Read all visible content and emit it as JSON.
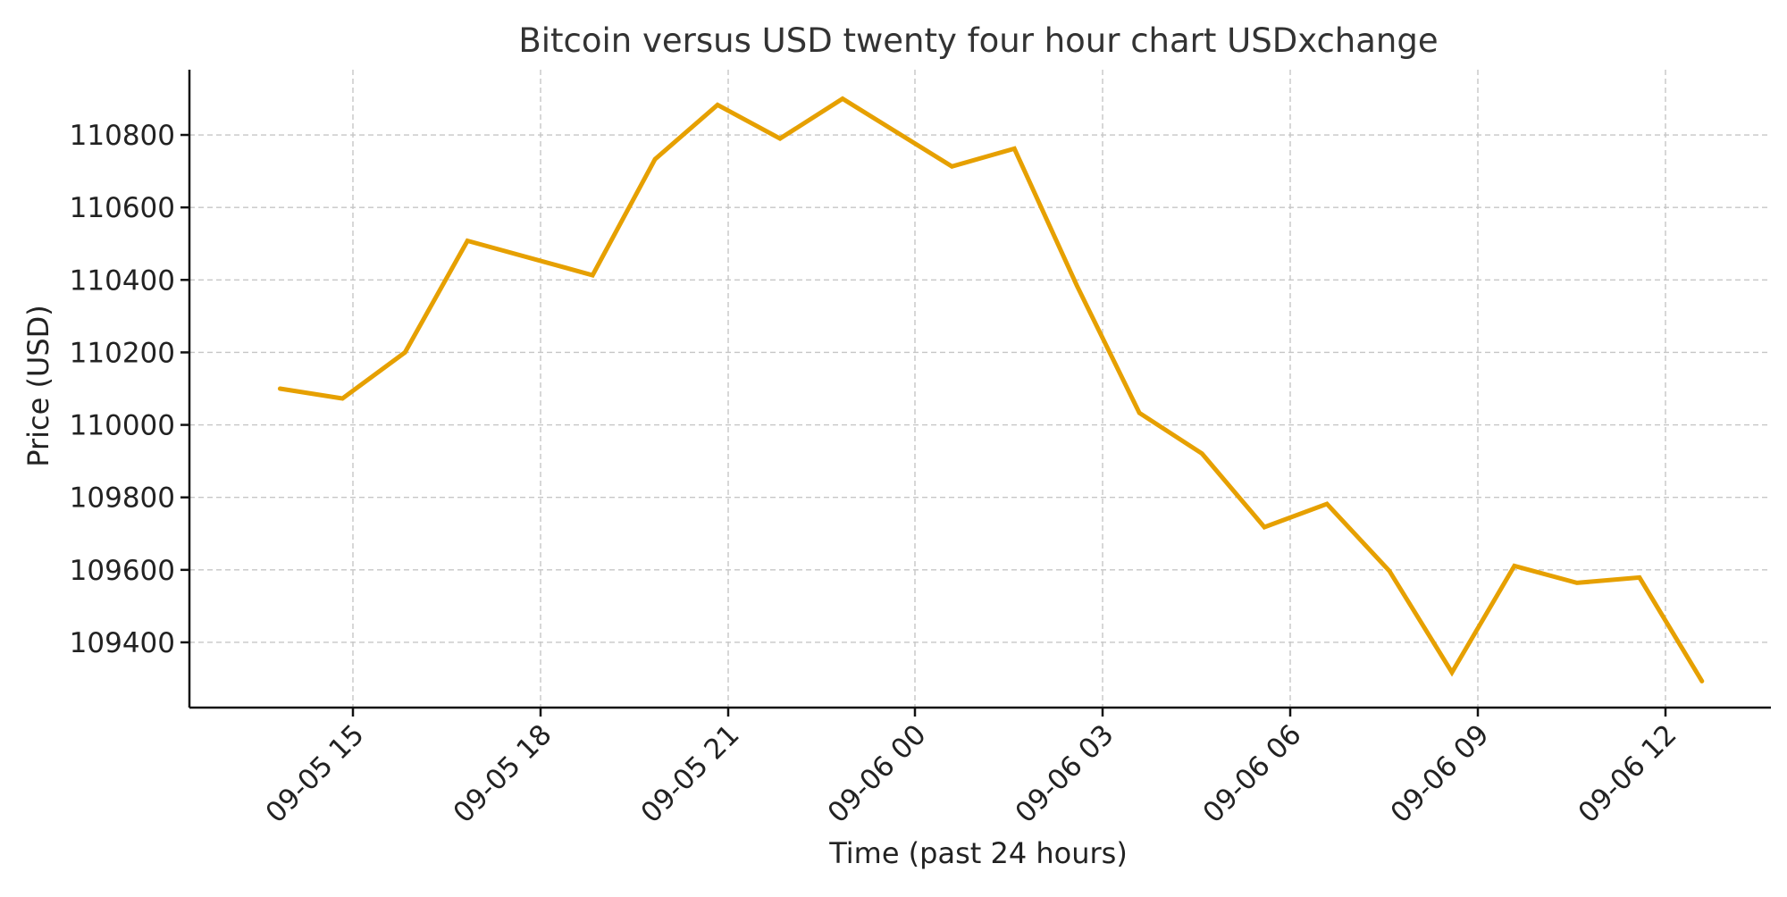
{
  "chart_data": {
    "type": "line",
    "title": "Bitcoin versus USD twenty four hour chart USDxchange",
    "xlabel": "Time (past 24 hours)",
    "ylabel": "Price (USD)",
    "x_ticks": [
      "09-05 15",
      "09-05 18",
      "09-05 21",
      "09-06 00",
      "09-06 03",
      "09-06 06",
      "09-06 09",
      "09-06 12"
    ],
    "y_ticks": [
      109400,
      109600,
      109800,
      110000,
      110200,
      110400,
      110600,
      110800
    ],
    "ylim": [
      109220,
      110980
    ],
    "xlim": [
      "09-05 12:50",
      "09-06 13:15"
    ],
    "grid": true,
    "legend": "none",
    "series": [
      {
        "color": "#e6a000",
        "points": [
          {
            "x": "09-05 13:50",
            "y": 110100
          },
          {
            "x": "09-05 14:50",
            "y": 110073
          },
          {
            "x": "09-05 15:50",
            "y": 110200
          },
          {
            "x": "09-05 16:50",
            "y": 110508
          },
          {
            "x": "09-05 18:50",
            "y": 110413
          },
          {
            "x": "09-05 19:50",
            "y": 110733
          },
          {
            "x": "09-05 20:50",
            "y": 110883
          },
          {
            "x": "09-05 21:50",
            "y": 110790
          },
          {
            "x": "09-05 22:50",
            "y": 110900
          },
          {
            "x": "09-06 00:35",
            "y": 110713
          },
          {
            "x": "09-06 01:35",
            "y": 110762
          },
          {
            "x": "09-06 02:35",
            "y": 110384
          },
          {
            "x": "09-06 03:35",
            "y": 110033
          },
          {
            "x": "09-06 04:35",
            "y": 109921
          },
          {
            "x": "09-06 05:35",
            "y": 109718
          },
          {
            "x": "09-06 06:35",
            "y": 109782
          },
          {
            "x": "09-06 07:35",
            "y": 109597
          },
          {
            "x": "09-06 08:35",
            "y": 109317
          },
          {
            "x": "09-06 09:35",
            "y": 109611
          },
          {
            "x": "09-06 10:35",
            "y": 109564
          },
          {
            "x": "09-06 11:35",
            "y": 109579
          },
          {
            "x": "09-06 12:35",
            "y": 109293
          }
        ]
      }
    ]
  }
}
